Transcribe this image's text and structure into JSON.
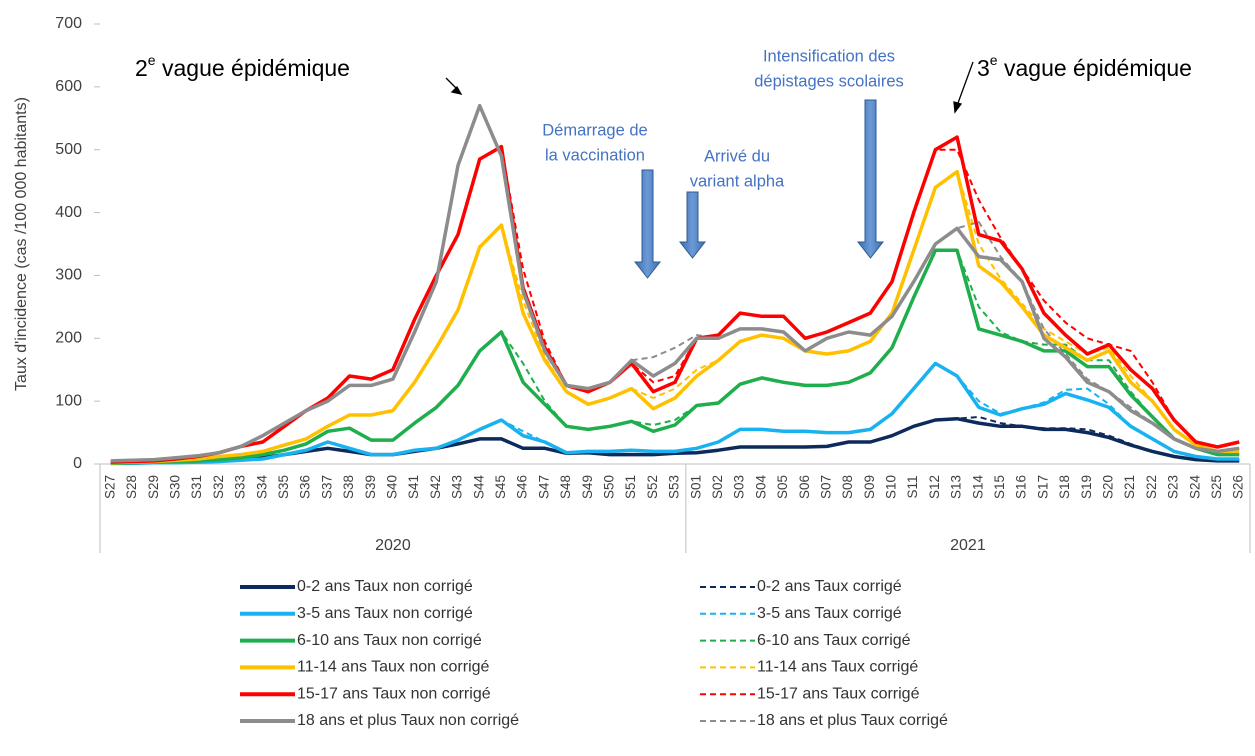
{
  "chart_data": {
    "type": "line",
    "y_label": "Taux d'incidence (cas /100 000 habitants)",
    "categories": [
      "S27",
      "S28",
      "S29",
      "S30",
      "S31",
      "S32",
      "S33",
      "S34",
      "S35",
      "S36",
      "S37",
      "S38",
      "S39",
      "S40",
      "S41",
      "S42",
      "S43",
      "S44",
      "S45",
      "S46",
      "S47",
      "S48",
      "S49",
      "S50",
      "S51",
      "S52",
      "S53",
      "S01",
      "S02",
      "S03",
      "S04",
      "S05",
      "S06",
      "S07",
      "S08",
      "S09",
      "S10",
      "S11",
      "S12",
      "S13",
      "S14",
      "S15",
      "S16",
      "S17",
      "S18",
      "S19",
      "S20",
      "S21",
      "S22",
      "S23",
      "S24",
      "S25",
      "S26"
    ],
    "x_groups": [
      "2020",
      "2021"
    ],
    "ylim": [
      0,
      700
    ],
    "yticks": [
      0,
      100,
      200,
      300,
      400,
      500,
      600,
      700
    ],
    "grid": false,
    "series": [
      {
        "name": "0-2 ans  Taux non corrigé",
        "color": "#0d2a5c",
        "style": "solid",
        "values": [
          2,
          3,
          3,
          4,
          4,
          5,
          7,
          10,
          15,
          20,
          25,
          20,
          15,
          15,
          20,
          25,
          32,
          40,
          40,
          25,
          25,
          17,
          18,
          15,
          15,
          15,
          17,
          18,
          22,
          27,
          27,
          27,
          27,
          28,
          35,
          35,
          45,
          60,
          70,
          72,
          65,
          60,
          60,
          55,
          55,
          50,
          42,
          30,
          20,
          12,
          7,
          5,
          5
        ]
      },
      {
        "name": "3-5 ans  Taux non corrigé",
        "color": "#19b2f0",
        "style": "solid",
        "values": [
          1,
          1,
          2,
          2,
          3,
          4,
          6,
          8,
          15,
          22,
          35,
          25,
          15,
          15,
          22,
          25,
          38,
          55,
          70,
          45,
          35,
          18,
          20,
          20,
          22,
          20,
          20,
          25,
          35,
          55,
          55,
          52,
          52,
          50,
          50,
          55,
          80,
          120,
          160,
          140,
          90,
          78,
          88,
          95,
          112,
          102,
          90,
          60,
          40,
          20,
          12,
          8,
          8
        ]
      },
      {
        "name": "6-10 ans Taux non corrigé",
        "color": "#1fae4c",
        "style": "solid",
        "values": [
          1,
          2,
          3,
          4,
          5,
          7,
          10,
          15,
          22,
          32,
          52,
          57,
          38,
          38,
          65,
          90,
          125,
          180,
          210,
          130,
          95,
          60,
          55,
          60,
          68,
          52,
          62,
          93,
          97,
          127,
          137,
          130,
          125,
          125,
          130,
          145,
          185,
          265,
          340,
          340,
          215,
          205,
          195,
          180,
          180,
          155,
          155,
          110,
          75,
          40,
          25,
          15,
          15
        ]
      },
      {
        "name": "11-14 ans Taux non corrigé",
        "color": "#ffc000",
        "style": "solid",
        "values": [
          2,
          3,
          4,
          6,
          8,
          12,
          15,
          20,
          30,
          40,
          60,
          78,
          78,
          85,
          130,
          185,
          245,
          345,
          380,
          240,
          165,
          115,
          95,
          105,
          120,
          88,
          105,
          140,
          165,
          195,
          205,
          200,
          180,
          175,
          180,
          195,
          240,
          340,
          440,
          465,
          315,
          290,
          250,
          205,
          185,
          165,
          180,
          130,
          100,
          55,
          30,
          20,
          20
        ]
      },
      {
        "name": "15-17 ans Taux non corrigé",
        "color": "#ff0000",
        "style": "solid",
        "values": [
          3,
          4,
          5,
          8,
          12,
          18,
          28,
          35,
          60,
          85,
          105,
          140,
          135,
          150,
          230,
          300,
          365,
          485,
          505,
          280,
          185,
          125,
          115,
          130,
          160,
          115,
          130,
          200,
          205,
          240,
          235,
          235,
          200,
          210,
          225,
          240,
          290,
          400,
          500,
          520,
          365,
          355,
          310,
          240,
          205,
          175,
          190,
          150,
          120,
          70,
          35,
          27,
          35
        ]
      },
      {
        "name": "18 ans et plus Taux non corrigé",
        "color": "#8c8c8c",
        "style": "solid",
        "values": [
          5,
          6,
          7,
          10,
          13,
          18,
          28,
          45,
          65,
          85,
          100,
          125,
          125,
          135,
          210,
          290,
          475,
          570,
          490,
          275,
          180,
          125,
          120,
          130,
          165,
          140,
          160,
          200,
          200,
          215,
          215,
          210,
          180,
          200,
          210,
          205,
          235,
          290,
          350,
          375,
          330,
          325,
          290,
          200,
          170,
          130,
          115,
          85,
          65,
          40,
          25,
          20,
          25
        ]
      },
      {
        "name": "0-2 ans  Taux corrigé",
        "color": "#0d2a5c",
        "style": "dashed",
        "values": [
          2,
          3,
          3,
          4,
          4,
          5,
          7,
          10,
          15,
          20,
          25,
          20,
          15,
          15,
          20,
          25,
          32,
          40,
          40,
          25,
          25,
          17,
          18,
          15,
          15,
          15,
          17,
          18,
          22,
          27,
          27,
          27,
          27,
          28,
          35,
          35,
          45,
          60,
          70,
          72,
          75,
          65,
          60,
          57,
          57,
          55,
          45,
          32,
          20,
          12,
          7,
          5,
          5
        ]
      },
      {
        "name": "3-5 ans  Taux corrigé",
        "color": "#19b2f0",
        "style": "dashed",
        "values": [
          1,
          1,
          2,
          2,
          3,
          4,
          6,
          8,
          15,
          22,
          35,
          25,
          15,
          15,
          22,
          25,
          38,
          55,
          70,
          52,
          35,
          18,
          20,
          20,
          22,
          20,
          20,
          25,
          35,
          55,
          55,
          52,
          52,
          50,
          50,
          55,
          80,
          120,
          160,
          140,
          100,
          80,
          88,
          98,
          118,
          120,
          95,
          60,
          40,
          20,
          12,
          8,
          8
        ]
      },
      {
        "name": "6-10 ans Taux corrigé",
        "color": "#1fae4c",
        "style": "dashed",
        "values": [
          1,
          2,
          3,
          4,
          5,
          7,
          10,
          15,
          22,
          32,
          52,
          57,
          38,
          38,
          65,
          90,
          125,
          180,
          210,
          160,
          100,
          60,
          55,
          60,
          68,
          62,
          70,
          93,
          97,
          127,
          137,
          130,
          125,
          125,
          130,
          145,
          185,
          265,
          340,
          340,
          250,
          210,
          195,
          190,
          190,
          165,
          165,
          115,
          75,
          40,
          25,
          15,
          15
        ]
      },
      {
        "name": "11-14 ans Taux corrigé",
        "color": "#ffc000",
        "style": "dashed",
        "values": [
          2,
          3,
          4,
          6,
          8,
          12,
          15,
          20,
          30,
          40,
          60,
          78,
          78,
          85,
          130,
          185,
          245,
          345,
          380,
          260,
          170,
          115,
          95,
          105,
          120,
          105,
          120,
          150,
          165,
          195,
          205,
          200,
          180,
          175,
          180,
          195,
          240,
          340,
          440,
          465,
          350,
          295,
          255,
          215,
          195,
          175,
          185,
          140,
          100,
          55,
          30,
          20,
          20
        ]
      },
      {
        "name": "15-17 ans Taux corrigé",
        "color": "#ff0000",
        "style": "dashed",
        "values": [
          3,
          4,
          5,
          8,
          12,
          18,
          28,
          35,
          60,
          85,
          105,
          140,
          135,
          150,
          230,
          300,
          365,
          485,
          505,
          310,
          195,
          125,
          115,
          130,
          160,
          130,
          140,
          200,
          205,
          240,
          235,
          235,
          200,
          210,
          225,
          240,
          290,
          400,
          500,
          500,
          420,
          360,
          310,
          260,
          225,
          200,
          190,
          180,
          130,
          70,
          35,
          27,
          35
        ]
      },
      {
        "name": "18 ans et plus Taux corrigé",
        "color": "#8c8c8c",
        "style": "dashed",
        "values": [
          5,
          6,
          7,
          10,
          13,
          18,
          28,
          45,
          65,
          85,
          100,
          125,
          125,
          135,
          210,
          290,
          475,
          570,
          490,
          285,
          185,
          125,
          120,
          130,
          165,
          170,
          185,
          205,
          200,
          215,
          215,
          210,
          180,
          200,
          210,
          205,
          235,
          290,
          350,
          375,
          385,
          330,
          290,
          215,
          175,
          135,
          115,
          90,
          65,
          40,
          25,
          20,
          25
        ]
      }
    ],
    "annotations": [
      {
        "number": "2",
        "superscript": "e",
        "text": " vague épidémique"
      },
      {
        "number": "3",
        "superscript": "e",
        "text": " vague épidémique"
      }
    ],
    "events": [
      {
        "lines": [
          "Démarrage de",
          "la vaccination"
        ]
      },
      {
        "lines": [
          "Arrivé du",
          "variant alpha"
        ]
      },
      {
        "lines": [
          "Intensification des",
          "dépistages scolaires"
        ]
      }
    ]
  }
}
